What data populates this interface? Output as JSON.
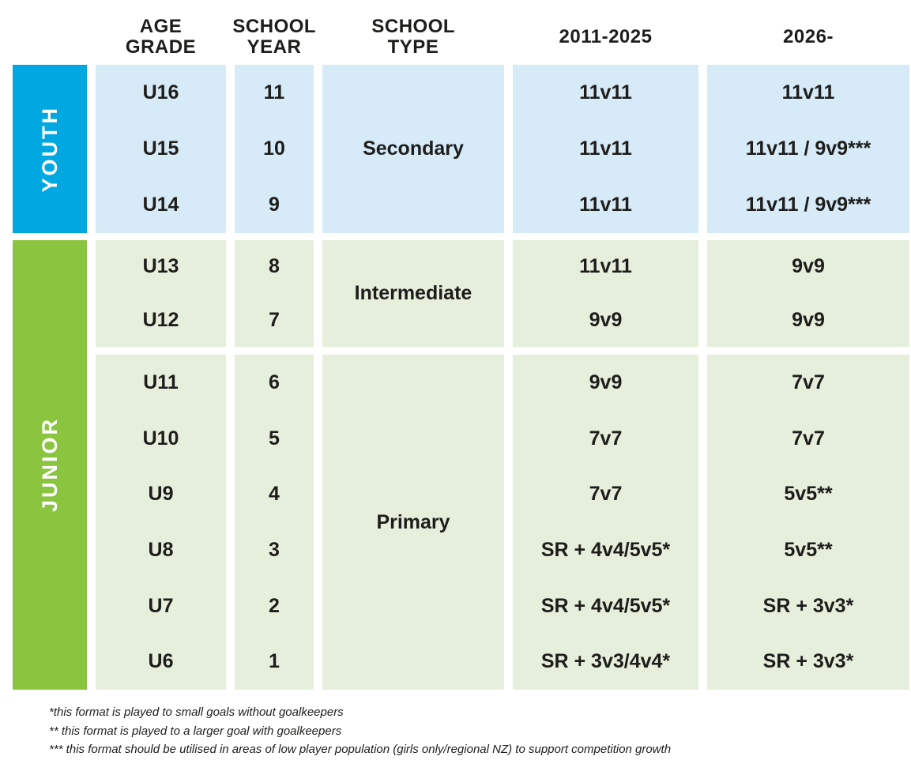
{
  "columns": [
    {
      "label": "AGE GRADE"
    },
    {
      "label": "SCHOOL YEAR"
    },
    {
      "label": "SCHOOL TYPE"
    },
    {
      "label": "2011-2025"
    },
    {
      "label": "2026-"
    }
  ],
  "groups": [
    {
      "name": "YOUTH",
      "school_type": "Secondary",
      "rows": [
        {
          "age_grade": "U16",
          "school_year": "11",
          "f2011": "11v11",
          "f2026": "11v11"
        },
        {
          "age_grade": "U15",
          "school_year": "10",
          "f2011": "11v11",
          "f2026": "11v11 / 9v9***"
        },
        {
          "age_grade": "U14",
          "school_year": "9",
          "f2011": "11v11",
          "f2026": "11v11 / 9v9***"
        }
      ]
    },
    {
      "name": "JUNIOR",
      "blocks": [
        {
          "school_type": "Intermediate",
          "rows": [
            {
              "age_grade": "U13",
              "school_year": "8",
              "f2011": "11v11",
              "f2026": "9v9"
            },
            {
              "age_grade": "U12",
              "school_year": "7",
              "f2011": "9v9",
              "f2026": "9v9"
            }
          ]
        },
        {
          "school_type": "Primary",
          "rows": [
            {
              "age_grade": "U11",
              "school_year": "6",
              "f2011": "9v9",
              "f2026": "7v7"
            },
            {
              "age_grade": "U10",
              "school_year": "5",
              "f2011": "7v7",
              "f2026": "7v7"
            },
            {
              "age_grade": "U9",
              "school_year": "4",
              "f2011": "7v7",
              "f2026": "5v5**"
            },
            {
              "age_grade": "U8",
              "school_year": "3",
              "f2011": "SR + 4v4/5v5*",
              "f2026": "5v5**"
            },
            {
              "age_grade": "U7",
              "school_year": "2",
              "f2011": "SR + 4v4/5v5*",
              "f2026": "SR + 3v3*"
            },
            {
              "age_grade": "U6",
              "school_year": "1",
              "f2011": "SR + 3v3/4v4*",
              "f2026": "SR + 3v3*"
            }
          ]
        }
      ]
    }
  ],
  "footnotes": [
    "*this format is played to small goals without goalkeepers",
    "** this format is played to a larger goal with goalkeepers",
    "*** this format should be utilised in areas of low player population (girls only/regional NZ) to support competition growth"
  ],
  "colors": {
    "youth_accent": "#00a8e1",
    "youth_cell": "#d7eaf8",
    "junior_accent": "#8bc540",
    "junior_cell": "#e6efdc"
  },
  "chart_data": {
    "type": "table",
    "columns": [
      "AGE GRADE",
      "SCHOOL YEAR",
      "SCHOOL TYPE",
      "2011-2025",
      "2026-"
    ],
    "rows": [
      {
        "group": "YOUTH",
        "age_grade": "U16",
        "school_year": "11",
        "school_type": "Secondary",
        "format_2011_2025": "11v11",
        "format_2026": "11v11"
      },
      {
        "group": "YOUTH",
        "age_grade": "U15",
        "school_year": "10",
        "school_type": "Secondary",
        "format_2011_2025": "11v11",
        "format_2026": "11v11 / 9v9***"
      },
      {
        "group": "YOUTH",
        "age_grade": "U14",
        "school_year": "9",
        "school_type": "Secondary",
        "format_2011_2025": "11v11",
        "format_2026": "11v11 / 9v9***"
      },
      {
        "group": "JUNIOR",
        "age_grade": "U13",
        "school_year": "8",
        "school_type": "Intermediate",
        "format_2011_2025": "11v11",
        "format_2026": "9v9"
      },
      {
        "group": "JUNIOR",
        "age_grade": "U12",
        "school_year": "7",
        "school_type": "Intermediate",
        "format_2011_2025": "9v9",
        "format_2026": "9v9"
      },
      {
        "group": "JUNIOR",
        "age_grade": "U11",
        "school_year": "6",
        "school_type": "Primary",
        "format_2011_2025": "9v9",
        "format_2026": "7v7"
      },
      {
        "group": "JUNIOR",
        "age_grade": "U10",
        "school_year": "5",
        "school_type": "Primary",
        "format_2011_2025": "7v7",
        "format_2026": "7v7"
      },
      {
        "group": "JUNIOR",
        "age_grade": "U9",
        "school_year": "4",
        "school_type": "Primary",
        "format_2011_2025": "7v7",
        "format_2026": "5v5**"
      },
      {
        "group": "JUNIOR",
        "age_grade": "U8",
        "school_year": "3",
        "school_type": "Primary",
        "format_2011_2025": "SR + 4v4/5v5*",
        "format_2026": "5v5**"
      },
      {
        "group": "JUNIOR",
        "age_grade": "U7",
        "school_year": "2",
        "school_type": "Primary",
        "format_2011_2025": "SR + 4v4/5v5*",
        "format_2026": "SR + 3v3*"
      },
      {
        "group": "JUNIOR",
        "age_grade": "U6",
        "school_year": "1",
        "school_type": "Primary",
        "format_2011_2025": "SR + 3v3/4v4*",
        "format_2026": "SR + 3v3*"
      }
    ]
  }
}
